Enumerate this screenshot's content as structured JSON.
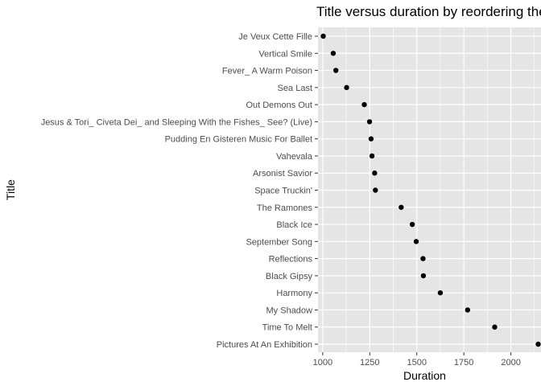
{
  "chart_data": {
    "type": "scatter",
    "title": "Title versus duration by reordering the",
    "xlabel": "Duration",
    "ylabel": "Title",
    "xlim": [
      975,
      2160
    ],
    "x_ticks": [
      1000,
      1250,
      1500,
      1750,
      2000
    ],
    "grid": true,
    "legend": "none",
    "colors": {
      "panel": "#e5e5e5",
      "grid": "#ffffff",
      "point": "#000000"
    },
    "points": [
      {
        "title": "Je Veux Cette Fille",
        "duration": 1003
      },
      {
        "title": "Vertical Smile",
        "duration": 1056
      },
      {
        "title": "Fever_ A Warm Poison",
        "duration": 1070
      },
      {
        "title": "Sea Last",
        "duration": 1127
      },
      {
        "title": "Out Demons Out",
        "duration": 1221
      },
      {
        "title": "Jesus & Tori_ Civeta Dei_ and Sleeping With the Fishes_ See? (Live)",
        "duration": 1249
      },
      {
        "title": "Pudding En Gisteren Music For Ballet",
        "duration": 1257
      },
      {
        "title": "Vahevala",
        "duration": 1262
      },
      {
        "title": "Arsonist Savior",
        "duration": 1276
      },
      {
        "title": "Space Truckin'",
        "duration": 1280
      },
      {
        "title": "The Ramones",
        "duration": 1417
      },
      {
        "title": "Black Ice",
        "duration": 1476
      },
      {
        "title": "September Song",
        "duration": 1497
      },
      {
        "title": "Reflections",
        "duration": 1533
      },
      {
        "title": "Black Gipsy",
        "duration": 1535
      },
      {
        "title": "Harmony",
        "duration": 1625
      },
      {
        "title": "My Shadow",
        "duration": 1770
      },
      {
        "title": "Time To Melt",
        "duration": 1914
      },
      {
        "title": "Pictures At An Exhibition",
        "duration": 2145
      }
    ]
  }
}
